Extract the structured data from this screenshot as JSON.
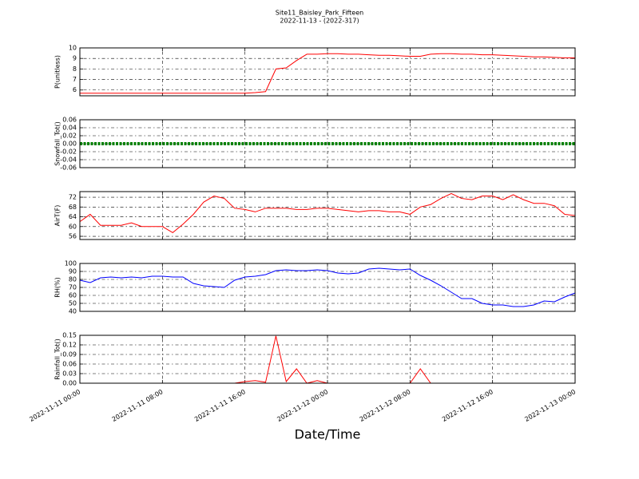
{
  "title": "Site11_Baisley_Park_Fifteen",
  "subtitle": "2022-11-13 - (2022-317)",
  "xlabel": "Date/Time",
  "chart_data": [
    {
      "type": "line",
      "ylabel": "P(unitless)",
      "ylim": [
        5.45,
        10
      ],
      "yticks": [
        6,
        7,
        8,
        9,
        10
      ],
      "grid": true,
      "xlim": [
        "2022-11-11 00:00",
        "2022-11-13 00:00"
      ],
      "xticks": [
        "2022-11-11 00:00",
        "2022-11-11 08:00",
        "2022-11-11 16:00",
        "2022-11-12 00:00",
        "2022-11-12 08:00",
        "2022-11-12 16:00",
        "2022-11-13 00:00"
      ],
      "x": [
        "2022-11-11 00:00",
        "2022-11-11 01:00",
        "2022-11-11 02:00",
        "2022-11-11 03:00",
        "2022-11-11 04:00",
        "2022-11-11 05:00",
        "2022-11-11 06:00",
        "2022-11-11 07:00",
        "2022-11-11 08:00",
        "2022-11-11 09:00",
        "2022-11-11 10:00",
        "2022-11-11 11:00",
        "2022-11-11 12:00",
        "2022-11-11 13:00",
        "2022-11-11 14:00",
        "2022-11-11 15:00",
        "2022-11-11 16:00",
        "2022-11-11 17:00",
        "2022-11-11 18:00",
        "2022-11-11 19:00",
        "2022-11-11 20:00",
        "2022-11-11 21:00",
        "2022-11-11 22:00",
        "2022-11-11 23:00",
        "2022-11-12 00:00",
        "2022-11-12 01:00",
        "2022-11-12 02:00",
        "2022-11-12 03:00",
        "2022-11-12 04:00",
        "2022-11-12 05:00",
        "2022-11-12 06:00",
        "2022-11-12 07:00",
        "2022-11-12 08:00",
        "2022-11-12 09:00",
        "2022-11-12 10:00",
        "2022-11-12 11:00",
        "2022-11-12 12:00",
        "2022-11-12 13:00",
        "2022-11-12 14:00",
        "2022-11-12 15:00",
        "2022-11-12 16:00",
        "2022-11-12 17:00",
        "2022-11-12 18:00",
        "2022-11-12 19:00",
        "2022-11-12 20:00",
        "2022-11-12 21:00",
        "2022-11-12 22:00",
        "2022-11-12 23:00",
        "2022-11-13 00:00"
      ],
      "series": [
        {
          "color": "#ff0000",
          "linewidth": 1,
          "values": [
            5.7,
            5.7,
            5.7,
            5.7,
            5.7,
            5.7,
            5.7,
            5.7,
            5.7,
            5.7,
            5.7,
            5.7,
            5.7,
            5.7,
            5.7,
            5.7,
            5.7,
            5.75,
            5.85,
            8.0,
            8.1,
            8.8,
            9.4,
            9.4,
            9.45,
            9.45,
            9.4,
            9.4,
            9.35,
            9.3,
            9.3,
            9.25,
            9.2,
            9.2,
            9.4,
            9.45,
            9.45,
            9.4,
            9.4,
            9.35,
            9.35,
            9.3,
            9.25,
            9.2,
            9.15,
            9.15,
            9.1,
            9.05,
            9.05
          ]
        }
      ]
    },
    {
      "type": "line",
      "ylabel": "Snowfall_Tot()",
      "ylim": [
        -0.06,
        0.06
      ],
      "yticks": [
        -0.06,
        -0.04,
        -0.02,
        {
          "value": 0,
          "label": "0.00"
        },
        0.02,
        0.04,
        0.06
      ],
      "grid": true,
      "xlim": [
        "2022-11-11 00:00",
        "2022-11-13 00:00"
      ],
      "xticks": [
        "2022-11-11 00:00",
        "2022-11-11 08:00",
        "2022-11-11 16:00",
        "2022-11-12 00:00",
        "2022-11-12 08:00",
        "2022-11-12 16:00",
        "2022-11-13 00:00"
      ],
      "x": [
        "2022-11-11 00:00",
        "2022-11-11 01:00",
        "2022-11-11 02:00",
        "2022-11-11 03:00",
        "2022-11-11 04:00",
        "2022-11-11 05:00",
        "2022-11-11 06:00",
        "2022-11-11 07:00",
        "2022-11-11 08:00",
        "2022-11-11 09:00",
        "2022-11-11 10:00",
        "2022-11-11 11:00",
        "2022-11-11 12:00",
        "2022-11-11 13:00",
        "2022-11-11 14:00",
        "2022-11-11 15:00",
        "2022-11-11 16:00",
        "2022-11-11 17:00",
        "2022-11-11 18:00",
        "2022-11-11 19:00",
        "2022-11-11 20:00",
        "2022-11-11 21:00",
        "2022-11-11 22:00",
        "2022-11-11 23:00",
        "2022-11-12 00:00",
        "2022-11-12 01:00",
        "2022-11-12 02:00",
        "2022-11-12 03:00",
        "2022-11-12 04:00",
        "2022-11-12 05:00",
        "2022-11-12 06:00",
        "2022-11-12 07:00",
        "2022-11-12 08:00",
        "2022-11-12 09:00",
        "2022-11-12 10:00",
        "2022-11-12 11:00",
        "2022-11-12 12:00",
        "2022-11-12 13:00",
        "2022-11-12 14:00",
        "2022-11-12 15:00",
        "2022-11-12 16:00",
        "2022-11-12 17:00",
        "2022-11-12 18:00",
        "2022-11-12 19:00",
        "2022-11-12 20:00",
        "2022-11-12 21:00",
        "2022-11-12 22:00",
        "2022-11-12 23:00",
        "2022-11-13 00:00"
      ],
      "series": [
        {
          "color": "#008000",
          "linewidth": 4,
          "values": [
            0,
            0,
            0,
            0,
            0,
            0,
            0,
            0,
            0,
            0,
            0,
            0,
            0,
            0,
            0,
            0,
            0,
            0,
            0,
            0,
            0,
            0,
            0,
            0,
            0,
            0,
            0,
            0,
            0,
            0,
            0,
            0,
            0,
            0,
            0,
            0,
            0,
            0,
            0,
            0,
            0,
            0,
            0,
            0,
            0,
            0,
            0,
            0,
            0
          ]
        }
      ]
    },
    {
      "type": "line",
      "ylabel": "AirT(F)",
      "ylim": [
        54.7,
        74.3
      ],
      "yticks": [
        56,
        60,
        64,
        68,
        72
      ],
      "grid": true,
      "xlim": [
        "2022-11-11 00:00",
        "2022-11-13 00:00"
      ],
      "xticks": [
        "2022-11-11 00:00",
        "2022-11-11 08:00",
        "2022-11-11 16:00",
        "2022-11-12 00:00",
        "2022-11-12 08:00",
        "2022-11-12 16:00",
        "2022-11-13 00:00"
      ],
      "x": [
        "2022-11-11 00:00",
        "2022-11-11 01:00",
        "2022-11-11 02:00",
        "2022-11-11 03:00",
        "2022-11-11 04:00",
        "2022-11-11 05:00",
        "2022-11-11 06:00",
        "2022-11-11 07:00",
        "2022-11-11 08:00",
        "2022-11-11 09:00",
        "2022-11-11 10:00",
        "2022-11-11 11:00",
        "2022-11-11 12:00",
        "2022-11-11 13:00",
        "2022-11-11 14:00",
        "2022-11-11 15:00",
        "2022-11-11 16:00",
        "2022-11-11 17:00",
        "2022-11-11 18:00",
        "2022-11-11 19:00",
        "2022-11-11 20:00",
        "2022-11-11 21:00",
        "2022-11-11 22:00",
        "2022-11-11 23:00",
        "2022-11-12 00:00",
        "2022-11-12 01:00",
        "2022-11-12 02:00",
        "2022-11-12 03:00",
        "2022-11-12 04:00",
        "2022-11-12 05:00",
        "2022-11-12 06:00",
        "2022-11-12 07:00",
        "2022-11-12 08:00",
        "2022-11-12 09:00",
        "2022-11-12 10:00",
        "2022-11-12 11:00",
        "2022-11-12 12:00",
        "2022-11-12 13:00",
        "2022-11-12 14:00",
        "2022-11-12 15:00",
        "2022-11-12 16:00",
        "2022-11-12 17:00",
        "2022-11-12 18:00",
        "2022-11-12 19:00",
        "2022-11-12 20:00",
        "2022-11-12 21:00",
        "2022-11-12 22:00",
        "2022-11-12 23:00",
        "2022-11-13 00:00"
      ],
      "series": [
        {
          "color": "#ff0000",
          "linewidth": 1,
          "values": [
            62,
            65,
            60.5,
            60.5,
            60.5,
            61.5,
            60,
            60,
            60,
            57.5,
            61,
            65,
            70,
            72.5,
            71.5,
            67.5,
            67,
            66,
            67.5,
            67.5,
            67.5,
            67,
            67,
            67.5,
            67.5,
            67,
            66.5,
            66,
            66.5,
            66.5,
            66,
            66,
            65,
            68,
            69,
            71.5,
            73.5,
            71.5,
            71,
            72.5,
            72.5,
            71,
            73,
            71,
            69.5,
            69.5,
            68.5,
            65,
            64.5
          ]
        }
      ]
    },
    {
      "type": "line",
      "ylabel": "RH(%)",
      "ylim": [
        40,
        100
      ],
      "yticks": [
        40,
        50,
        60,
        70,
        80,
        90,
        100
      ],
      "grid": true,
      "xlim": [
        "2022-11-11 00:00",
        "2022-11-13 00:00"
      ],
      "xticks": [
        "2022-11-11 00:00",
        "2022-11-11 08:00",
        "2022-11-11 16:00",
        "2022-11-12 00:00",
        "2022-11-12 08:00",
        "2022-11-12 16:00",
        "2022-11-13 00:00"
      ],
      "x": [
        "2022-11-11 00:00",
        "2022-11-11 01:00",
        "2022-11-11 02:00",
        "2022-11-11 03:00",
        "2022-11-11 04:00",
        "2022-11-11 05:00",
        "2022-11-11 06:00",
        "2022-11-11 07:00",
        "2022-11-11 08:00",
        "2022-11-11 09:00",
        "2022-11-11 10:00",
        "2022-11-11 11:00",
        "2022-11-11 12:00",
        "2022-11-11 13:00",
        "2022-11-11 14:00",
        "2022-11-11 15:00",
        "2022-11-11 16:00",
        "2022-11-11 17:00",
        "2022-11-11 18:00",
        "2022-11-11 19:00",
        "2022-11-11 20:00",
        "2022-11-11 21:00",
        "2022-11-11 22:00",
        "2022-11-11 23:00",
        "2022-11-12 00:00",
        "2022-11-12 01:00",
        "2022-11-12 02:00",
        "2022-11-12 03:00",
        "2022-11-12 04:00",
        "2022-11-12 05:00",
        "2022-11-12 06:00",
        "2022-11-12 07:00",
        "2022-11-12 08:00",
        "2022-11-12 09:00",
        "2022-11-12 10:00",
        "2022-11-12 11:00",
        "2022-11-12 12:00",
        "2022-11-12 13:00",
        "2022-11-12 14:00",
        "2022-11-12 15:00",
        "2022-11-12 16:00",
        "2022-11-12 17:00",
        "2022-11-12 18:00",
        "2022-11-12 19:00",
        "2022-11-12 20:00",
        "2022-11-12 21:00",
        "2022-11-12 22:00",
        "2022-11-12 23:00",
        "2022-11-13 00:00"
      ],
      "series": [
        {
          "color": "#0000ff",
          "linewidth": 1,
          "values": [
            79,
            76,
            82,
            83,
            82,
            83,
            82,
            84,
            84,
            83,
            83,
            75,
            72,
            71,
            70,
            79,
            83,
            84,
            86,
            91,
            92,
            91,
            91,
            92,
            91,
            88,
            87,
            88,
            93,
            94,
            93,
            92,
            93,
            85,
            79,
            72,
            64,
            56,
            56,
            50,
            48,
            48,
            46,
            46,
            48,
            53,
            52,
            58,
            63
          ]
        }
      ]
    },
    {
      "type": "line",
      "ylabel": "Rainfall_Tot()",
      "ylim": [
        0,
        0.15
      ],
      "yticks": [
        {
          "value": 0,
          "label": "0.00"
        },
        0.03,
        0.06,
        0.09,
        0.12,
        0.15
      ],
      "grid": true,
      "xlim": [
        "2022-11-11 00:00",
        "2022-11-13 00:00"
      ],
      "xticks": [
        "2022-11-11 00:00",
        "2022-11-11 08:00",
        "2022-11-11 16:00",
        "2022-11-12 00:00",
        "2022-11-12 08:00",
        "2022-11-12 16:00",
        "2022-11-13 00:00"
      ],
      "x": [
        "2022-11-11 00:00",
        "2022-11-11 01:00",
        "2022-11-11 02:00",
        "2022-11-11 03:00",
        "2022-11-11 04:00",
        "2022-11-11 05:00",
        "2022-11-11 06:00",
        "2022-11-11 07:00",
        "2022-11-11 08:00",
        "2022-11-11 09:00",
        "2022-11-11 10:00",
        "2022-11-11 11:00",
        "2022-11-11 12:00",
        "2022-11-11 13:00",
        "2022-11-11 14:00",
        "2022-11-11 15:00",
        "2022-11-11 16:00",
        "2022-11-11 17:00",
        "2022-11-11 18:00",
        "2022-11-11 19:00",
        "2022-11-11 20:00",
        "2022-11-11 21:00",
        "2022-11-11 22:00",
        "2022-11-11 23:00",
        "2022-11-12 00:00",
        "2022-11-12 01:00",
        "2022-11-12 02:00",
        "2022-11-12 03:00",
        "2022-11-12 04:00",
        "2022-11-12 05:00",
        "2022-11-12 06:00",
        "2022-11-12 07:00",
        "2022-11-12 08:00",
        "2022-11-12 09:00",
        "2022-11-12 10:00",
        "2022-11-12 11:00",
        "2022-11-12 12:00",
        "2022-11-12 13:00",
        "2022-11-12 14:00",
        "2022-11-12 15:00",
        "2022-11-12 16:00",
        "2022-11-12 17:00",
        "2022-11-12 18:00",
        "2022-11-12 19:00",
        "2022-11-12 20:00",
        "2022-11-12 21:00",
        "2022-11-12 22:00",
        "2022-11-12 23:00",
        "2022-11-13 00:00"
      ],
      "series": [
        {
          "color": "#ff0000",
          "linewidth": 1,
          "values": [
            0,
            0,
            0,
            0,
            0,
            0,
            0,
            0,
            0,
            0,
            0,
            0,
            0,
            0,
            0,
            0,
            0.005,
            0.008,
            0.003,
            0.148,
            0.005,
            0.045,
            0,
            0.008,
            0,
            0,
            0,
            0,
            0,
            0,
            0,
            0,
            0,
            0.045,
            0,
            0,
            0,
            0,
            0,
            0,
            0,
            0,
            0,
            0,
            0,
            0,
            0,
            0,
            0
          ]
        }
      ]
    }
  ]
}
